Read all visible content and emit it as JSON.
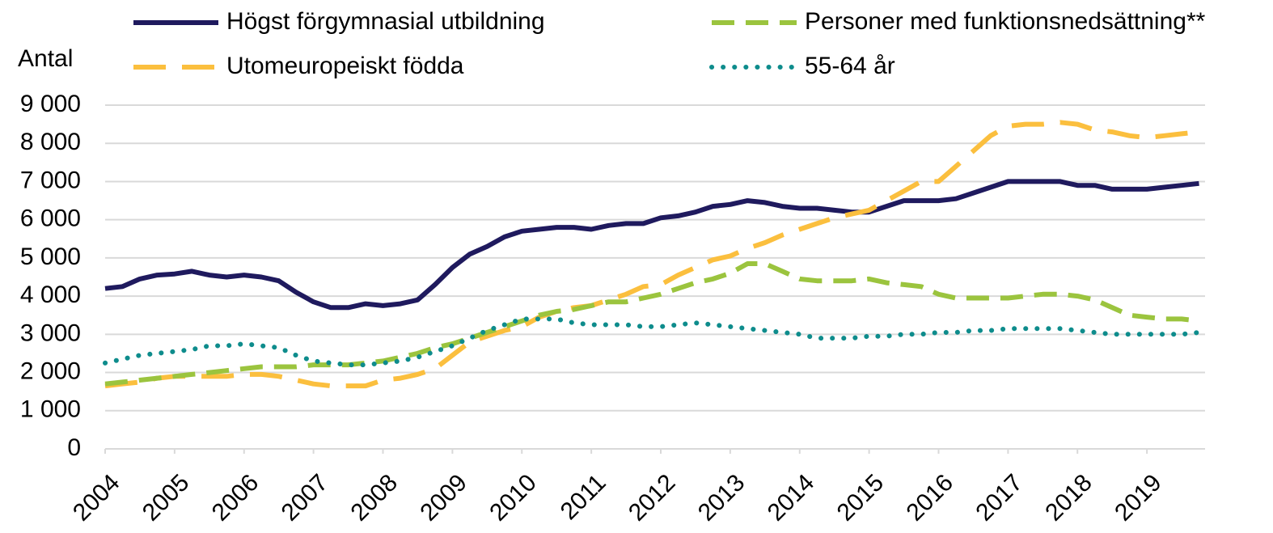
{
  "chart_data": {
    "type": "line",
    "ylabel": "Antal",
    "legend": "top",
    "grid": true,
    "xlim": [
      2004,
      2020
    ],
    "ylim": [
      0,
      9000
    ],
    "xticks": [
      2004,
      2005,
      2006,
      2007,
      2008,
      2009,
      2010,
      2011,
      2012,
      2013,
      2014,
      2015,
      2016,
      2017,
      2018,
      2019
    ],
    "yticks": [
      0,
      {
        "value": 1000,
        "label": "1 000"
      },
      {
        "value": 2000,
        "label": "2 000"
      },
      {
        "value": 3000,
        "label": "3 000"
      },
      {
        "value": 4000,
        "label": "4 000"
      },
      {
        "value": 5000,
        "label": "5 000"
      },
      {
        "value": 6000,
        "label": "6 000"
      },
      {
        "value": 7000,
        "label": "7 000"
      },
      {
        "value": 8000,
        "label": "8 000"
      },
      {
        "value": 9000,
        "label": "9 000"
      }
    ],
    "x": [
      2004,
      2004.25,
      2004.5,
      2004.75,
      2005,
      2005.25,
      2005.5,
      2005.75,
      2006,
      2006.25,
      2006.5,
      2006.75,
      2007,
      2007.25,
      2007.5,
      2007.75,
      2008,
      2008.25,
      2008.5,
      2008.75,
      2009,
      2009.25,
      2009.5,
      2009.75,
      2010,
      2010.25,
      2010.5,
      2010.75,
      2011,
      2011.25,
      2011.5,
      2011.75,
      2012,
      2012.25,
      2012.5,
      2012.75,
      2013,
      2013.25,
      2013.5,
      2013.75,
      2014,
      2014.25,
      2014.5,
      2014.75,
      2015,
      2015.25,
      2015.5,
      2015.75,
      2016,
      2016.25,
      2016.5,
      2016.75,
      2017,
      2017.25,
      2017.5,
      2017.75,
      2018,
      2018.25,
      2018.5,
      2018.75,
      2019,
      2019.25,
      2019.5,
      2019.75
    ],
    "series": [
      {
        "name": "Högst förgymnasial utbildning",
        "color": "#1f1a5e",
        "style": "solid",
        "values": [
          4200,
          4250,
          4450,
          4550,
          4580,
          4650,
          4550,
          4500,
          4550,
          4500,
          4400,
          4100,
          3850,
          3700,
          3700,
          3800,
          3750,
          3800,
          3900,
          4300,
          4750,
          5100,
          5300,
          5550,
          5700,
          5750,
          5800,
          5800,
          5750,
          5850,
          5900,
          5900,
          6050,
          6100,
          6200,
          6350,
          6400,
          6500,
          6450,
          6350,
          6300,
          6300,
          6250,
          6200,
          6200,
          6350,
          6500,
          6500,
          6500,
          6550,
          6700,
          6850,
          7000,
          7000,
          7000,
          7000,
          6900,
          6900,
          6800,
          6800,
          6800,
          6850,
          6900,
          6950
        ]
      },
      {
        "name": "Utomeuropeiskt födda",
        "color": "#fbbf3e",
        "style": "dashed",
        "values": [
          1650,
          1700,
          1750,
          1850,
          1900,
          1900,
          1900,
          1900,
          1950,
          1950,
          1900,
          1800,
          1700,
          1650,
          1650,
          1650,
          1800,
          1850,
          1950,
          2100,
          2450,
          2800,
          2950,
          3100,
          3200,
          3450,
          3600,
          3700,
          3750,
          3900,
          4050,
          4250,
          4300,
          4550,
          4750,
          4950,
          5050,
          5250,
          5400,
          5600,
          5750,
          5900,
          6050,
          6150,
          6250,
          6500,
          6750,
          7000,
          7000,
          7400,
          7800,
          8200,
          8450,
          8500,
          8500,
          8550,
          8500,
          8350,
          8300,
          8200,
          8150,
          8200,
          8250,
          8300
        ]
      },
      {
        "name": "Personer med funktionsnedsättning**",
        "color": "#9bc43e",
        "style": "dashed-short",
        "values": [
          1700,
          1750,
          1800,
          1850,
          1900,
          1950,
          2000,
          2050,
          2100,
          2150,
          2150,
          2150,
          2200,
          2200,
          2200,
          2250,
          2300,
          2400,
          2500,
          2650,
          2750,
          2900,
          3050,
          3200,
          3350,
          3500,
          3600,
          3650,
          3750,
          3850,
          3850,
          3950,
          4050,
          4200,
          4350,
          4450,
          4600,
          4850,
          4850,
          4650,
          4450,
          4400,
          4400,
          4400,
          4450,
          4350,
          4300,
          4250,
          4050,
          3950,
          3950,
          3950,
          3950,
          4000,
          4050,
          4050,
          4000,
          3900,
          3700,
          3500,
          3450,
          3400,
          3400,
          3350
        ]
      },
      {
        "name": "55-64 år",
        "color": "#0e8c8c",
        "style": "dotted",
        "values": [
          2250,
          2350,
          2450,
          2500,
          2550,
          2600,
          2700,
          2700,
          2750,
          2700,
          2650,
          2450,
          2300,
          2250,
          2200,
          2200,
          2250,
          2300,
          2400,
          2550,
          2700,
          2900,
          3100,
          3250,
          3400,
          3400,
          3400,
          3300,
          3250,
          3250,
          3250,
          3200,
          3200,
          3250,
          3300,
          3250,
          3200,
          3150,
          3100,
          3050,
          3000,
          2900,
          2900,
          2900,
          2950,
          2950,
          3000,
          3000,
          3050,
          3050,
          3100,
          3100,
          3150,
          3150,
          3150,
          3150,
          3100,
          3050,
          3000,
          3000,
          3000,
          3000,
          3000,
          3050
        ]
      }
    ]
  }
}
